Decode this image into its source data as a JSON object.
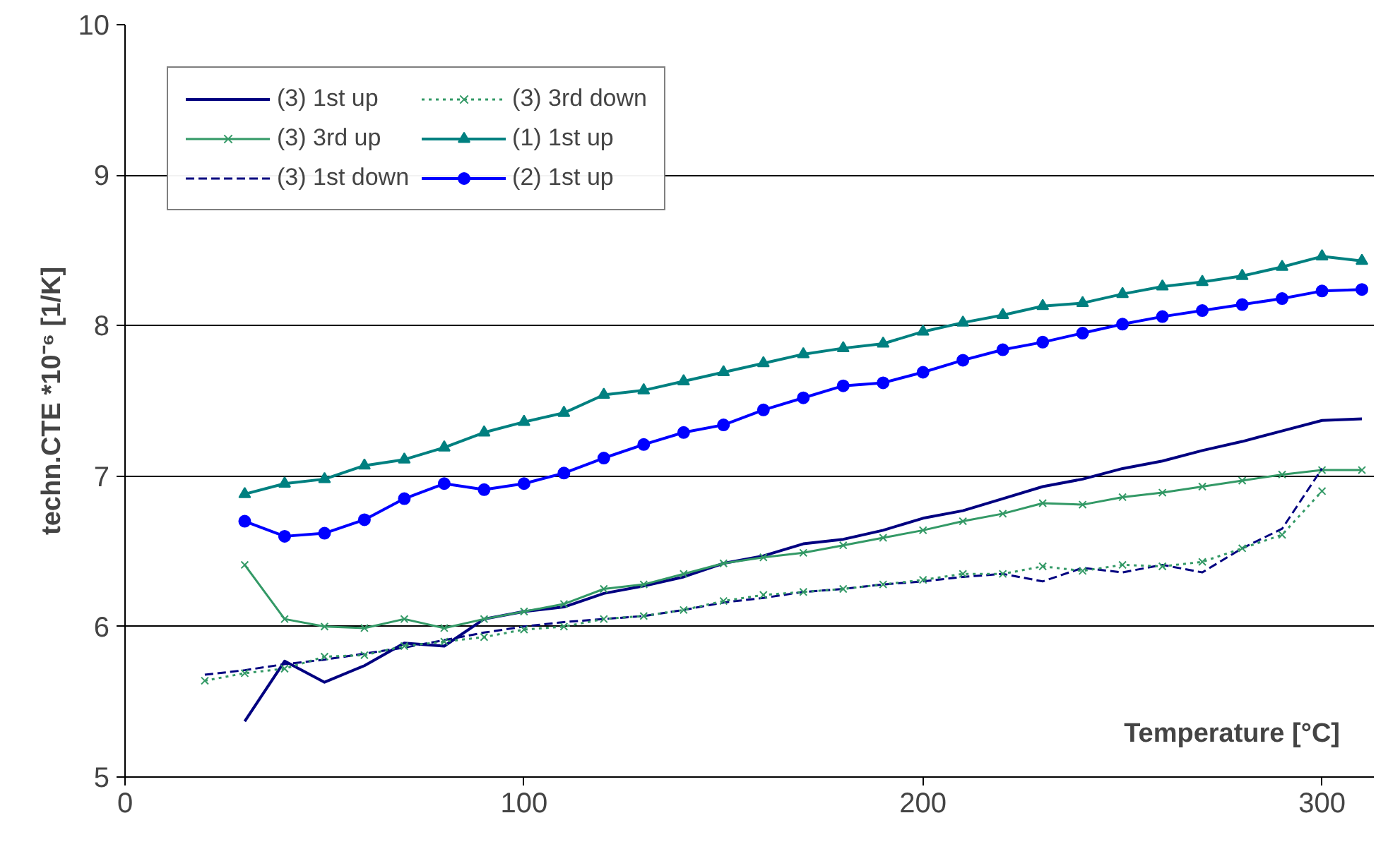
{
  "chart_data": {
    "type": "line",
    "xlabel": "Temperature [°C]",
    "ylabel": "techn.CTE *10⁻⁶ [1/K]",
    "xlim": [
      0,
      313
    ],
    "ylim": [
      5,
      10
    ],
    "xticks": [
      0,
      100,
      200,
      300
    ],
    "yticks": [
      5,
      6,
      7,
      8,
      9,
      10
    ],
    "grid": "y",
    "legend": "top left",
    "series": [
      {
        "name": "(3) 1st up",
        "color": "#000080",
        "line_style": "solid",
        "marker": "none",
        "x": [
          30,
          40,
          50,
          60,
          70,
          80,
          90,
          100,
          110,
          120,
          130,
          140,
          150,
          160,
          170,
          180,
          190,
          200,
          210,
          220,
          230,
          240,
          250,
          260,
          270,
          280,
          290,
          300,
          310
        ],
        "values": [
          5.37,
          5.77,
          5.63,
          5.74,
          5.89,
          5.87,
          6.05,
          6.1,
          6.13,
          6.22,
          6.27,
          6.33,
          6.42,
          6.47,
          6.55,
          6.58,
          6.64,
          6.72,
          6.77,
          6.85,
          6.93,
          6.98,
          7.05,
          7.1,
          7.17,
          7.23,
          7.3,
          7.37,
          7.38
        ]
      },
      {
        "name": "(3) 3rd up",
        "color": "#339966",
        "line_style": "solid",
        "marker": "cross",
        "x": [
          30,
          40,
          50,
          60,
          70,
          80,
          90,
          100,
          110,
          120,
          130,
          140,
          150,
          160,
          170,
          180,
          190,
          200,
          210,
          220,
          230,
          240,
          250,
          260,
          270,
          280,
          290,
          300,
          310
        ],
        "values": [
          6.41,
          6.05,
          6.0,
          5.99,
          6.05,
          5.99,
          6.05,
          6.1,
          6.15,
          6.25,
          6.28,
          6.35,
          6.42,
          6.46,
          6.49,
          6.54,
          6.59,
          6.64,
          6.7,
          6.75,
          6.82,
          6.81,
          6.86,
          6.89,
          6.93,
          6.97,
          7.01,
          7.04,
          7.04
        ]
      },
      {
        "name": "(3) 1st down",
        "color": "#000080",
        "line_style": "dashed",
        "marker": "none",
        "x": [
          20,
          30,
          40,
          50,
          60,
          70,
          80,
          90,
          100,
          110,
          120,
          130,
          140,
          150,
          160,
          170,
          180,
          190,
          200,
          210,
          220,
          230,
          240,
          250,
          260,
          270,
          280,
          290,
          300
        ],
        "values": [
          5.68,
          5.71,
          5.75,
          5.78,
          5.82,
          5.86,
          5.91,
          5.96,
          6.0,
          6.03,
          6.05,
          6.07,
          6.11,
          6.16,
          6.19,
          6.23,
          6.25,
          6.28,
          6.3,
          6.33,
          6.35,
          6.3,
          6.39,
          6.36,
          6.41,
          6.36,
          6.52,
          6.65,
          7.05
        ]
      },
      {
        "name": "(3) 3rd down",
        "color": "#339966",
        "line_style": "dotted",
        "marker": "cross",
        "x": [
          20,
          30,
          40,
          50,
          60,
          70,
          80,
          90,
          100,
          110,
          120,
          130,
          140,
          150,
          160,
          170,
          180,
          190,
          200,
          210,
          220,
          230,
          240,
          250,
          260,
          270,
          280,
          290,
          300
        ],
        "values": [
          5.64,
          5.69,
          5.72,
          5.8,
          5.81,
          5.87,
          5.9,
          5.93,
          5.98,
          6.0,
          6.05,
          6.07,
          6.11,
          6.17,
          6.21,
          6.23,
          6.25,
          6.28,
          6.31,
          6.35,
          6.35,
          6.4,
          6.37,
          6.41,
          6.4,
          6.43,
          6.52,
          6.61,
          6.9
        ]
      },
      {
        "name": "(1) 1st up",
        "color": "#008080",
        "line_style": "solid",
        "marker": "triangle",
        "x": [
          30,
          40,
          50,
          60,
          70,
          80,
          90,
          100,
          110,
          120,
          130,
          140,
          150,
          160,
          170,
          180,
          190,
          200,
          210,
          220,
          230,
          240,
          250,
          260,
          270,
          280,
          290,
          300,
          310
        ],
        "values": [
          6.88,
          6.95,
          6.98,
          7.07,
          7.11,
          7.19,
          7.29,
          7.36,
          7.42,
          7.54,
          7.57,
          7.63,
          7.69,
          7.75,
          7.81,
          7.85,
          7.88,
          7.96,
          8.02,
          8.07,
          8.13,
          8.15,
          8.21,
          8.26,
          8.29,
          8.33,
          8.39,
          8.46,
          8.43
        ]
      },
      {
        "name": "(2) 1st up",
        "color": "#0000ff",
        "line_style": "solid",
        "marker": "circle",
        "x": [
          30,
          40,
          50,
          60,
          70,
          80,
          90,
          100,
          110,
          120,
          130,
          140,
          150,
          160,
          170,
          180,
          190,
          200,
          210,
          220,
          230,
          240,
          250,
          260,
          270,
          280,
          290,
          300,
          310
        ],
        "values": [
          6.7,
          6.6,
          6.62,
          6.71,
          6.85,
          6.95,
          6.91,
          6.95,
          7.02,
          7.12,
          7.21,
          7.29,
          7.34,
          7.44,
          7.52,
          7.6,
          7.62,
          7.69,
          7.77,
          7.84,
          7.89,
          7.95,
          8.01,
          8.06,
          8.1,
          8.14,
          8.18,
          8.23,
          8.24
        ]
      }
    ]
  }
}
